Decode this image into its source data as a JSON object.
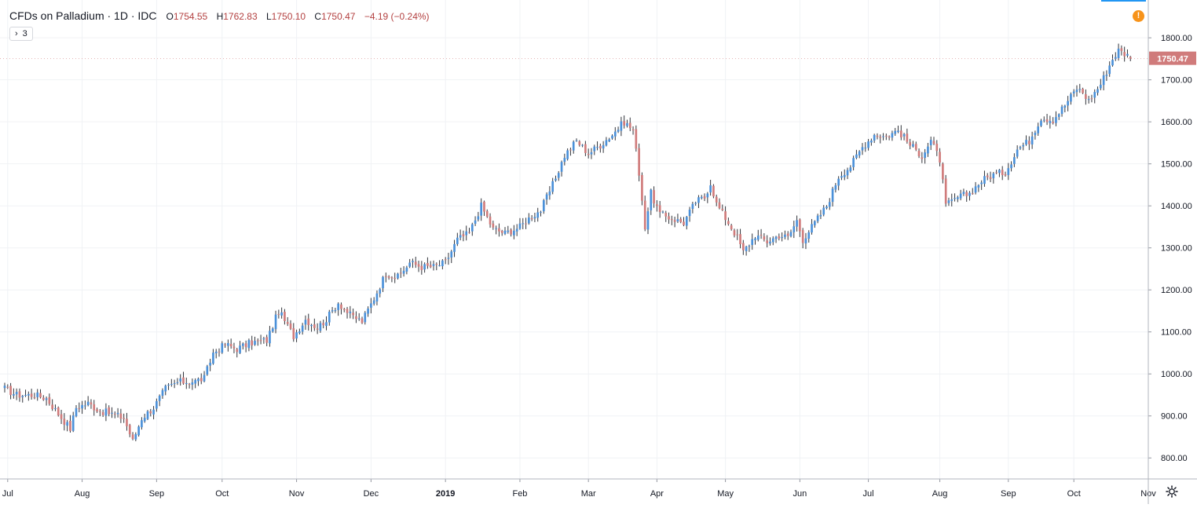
{
  "legend": {
    "symbol": "CFDs on Palladium · 1D · IDC",
    "open_label": "O",
    "open": "1754.55",
    "high_label": "H",
    "high": "1762.83",
    "low_label": "L",
    "low": "1750.10",
    "close_label": "C",
    "close": "1750.47",
    "change": "−4.19 (−0.24%)"
  },
  "indicators_toggle": {
    "chevron": "›",
    "count": "3"
  },
  "warning_icon": {
    "glyph": "!"
  },
  "last_price_label": "1750.47",
  "colors": {
    "up": "#4a90d9",
    "down": "#d07b7b",
    "grid": "#f0f2f5",
    "axis": "#9598a1",
    "price_tag": "#d07b7b"
  },
  "chart_data": {
    "type": "candlestick",
    "timeframe": "1D",
    "ylim": [
      750,
      1890
    ],
    "y_ticks": [
      800,
      900,
      1000,
      1100,
      1200,
      1300,
      1400,
      1500,
      1600,
      1700,
      1800
    ],
    "y_tick_labels": [
      "800.00",
      "900.00",
      "1000.00",
      "1100.00",
      "1200.00",
      "1300.00",
      "1400.00",
      "1500.00",
      "1600.00",
      "1700.00",
      "1800.00"
    ],
    "x_labels": [
      "Jul",
      "Aug",
      "Sep",
      "Oct",
      "Nov",
      "Dec",
      "2019",
      "Feb",
      "Mar",
      "Apr",
      "May",
      "Jun",
      "Jul",
      "Aug",
      "Sep",
      "Oct",
      "Nov"
    ],
    "x_label_positions": [
      1,
      26,
      51,
      73,
      98,
      123,
      148,
      173,
      196,
      219,
      242,
      267,
      290,
      314,
      337,
      359,
      384
    ],
    "total_bars": 384,
    "last_close": 1750.47,
    "anchors": [
      [
        0,
        965
      ],
      [
        4,
        950
      ],
      [
        10,
        950
      ],
      [
        14,
        942
      ],
      [
        18,
        905
      ],
      [
        22,
        870
      ],
      [
        24,
        920
      ],
      [
        28,
        930
      ],
      [
        32,
        912
      ],
      [
        36,
        905
      ],
      [
        40,
        895
      ],
      [
        43,
        840
      ],
      [
        46,
        895
      ],
      [
        50,
        920
      ],
      [
        54,
        965
      ],
      [
        58,
        980
      ],
      [
        64,
        983
      ],
      [
        67,
        990
      ],
      [
        70,
        1050
      ],
      [
        74,
        1070
      ],
      [
        78,
        1060
      ],
      [
        83,
        1075
      ],
      [
        88,
        1080
      ],
      [
        92,
        1150
      ],
      [
        97,
        1090
      ],
      [
        101,
        1130
      ],
      [
        105,
        1110
      ],
      [
        108,
        1130
      ],
      [
        112,
        1170
      ],
      [
        116,
        1140
      ],
      [
        120,
        1125
      ],
      [
        124,
        1180
      ],
      [
        128,
        1240
      ],
      [
        132,
        1230
      ],
      [
        136,
        1265
      ],
      [
        140,
        1255
      ],
      [
        144,
        1255
      ],
      [
        148,
        1265
      ],
      [
        152,
        1320
      ],
      [
        156,
        1335
      ],
      [
        160,
        1400
      ],
      [
        164,
        1345
      ],
      [
        168,
        1335
      ],
      [
        173,
        1350
      ],
      [
        176,
        1370
      ],
      [
        180,
        1390
      ],
      [
        184,
        1450
      ],
      [
        188,
        1520
      ],
      [
        192,
        1555
      ],
      [
        196,
        1525
      ],
      [
        200,
        1545
      ],
      [
        204,
        1570
      ],
      [
        208,
        1600
      ],
      [
        211,
        1580
      ],
      [
        213,
        1480
      ],
      [
        215,
        1350
      ],
      [
        217,
        1430
      ],
      [
        220,
        1380
      ],
      [
        224,
        1370
      ],
      [
        228,
        1360
      ],
      [
        232,
        1410
      ],
      [
        235,
        1420
      ],
      [
        237,
        1455
      ],
      [
        239,
        1405
      ],
      [
        243,
        1360
      ],
      [
        246,
        1325
      ],
      [
        248,
        1290
      ],
      [
        252,
        1330
      ],
      [
        256,
        1315
      ],
      [
        260,
        1330
      ],
      [
        263,
        1325
      ],
      [
        266,
        1365
      ],
      [
        268,
        1320
      ],
      [
        272,
        1360
      ],
      [
        276,
        1400
      ],
      [
        280,
        1470
      ],
      [
        284,
        1495
      ],
      [
        288,
        1540
      ],
      [
        292,
        1570
      ],
      [
        296,
        1565
      ],
      [
        300,
        1580
      ],
      [
        304,
        1545
      ],
      [
        308,
        1520
      ],
      [
        311,
        1555
      ],
      [
        314,
        1510
      ],
      [
        316,
        1400
      ],
      [
        320,
        1420
      ],
      [
        324,
        1430
      ],
      [
        328,
        1460
      ],
      [
        332,
        1475
      ],
      [
        336,
        1480
      ],
      [
        340,
        1535
      ],
      [
        344,
        1555
      ],
      [
        348,
        1610
      ],
      [
        352,
        1605
      ],
      [
        356,
        1640
      ],
      [
        360,
        1680
      ],
      [
        362,
        1670
      ],
      [
        364,
        1650
      ],
      [
        368,
        1690
      ],
      [
        372,
        1750
      ],
      [
        374,
        1770
      ],
      [
        378,
        1754.55
      ]
    ]
  }
}
